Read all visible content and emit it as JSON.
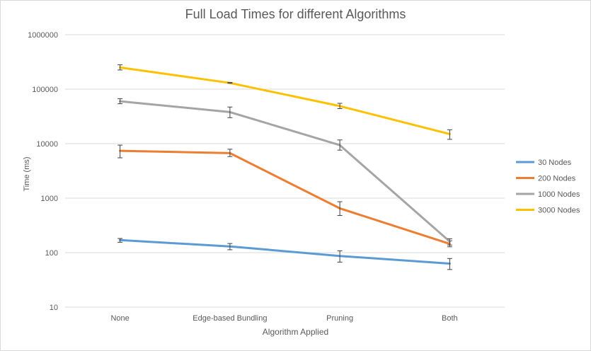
{
  "chart_data": {
    "type": "line",
    "title": "Full Load Times for different Algorithms",
    "xlabel": "Algorithm Applied",
    "ylabel": "Time (ms)",
    "yscale": "log",
    "ylim": [
      10,
      1000000
    ],
    "yticks": [
      "10",
      "100",
      "1000",
      "10000",
      "100000",
      "1000000"
    ],
    "categories": [
      "None",
      "Edge-based Bundling",
      "Pruning",
      "Both"
    ],
    "grid": "horizontal",
    "legend": "right",
    "series": [
      {
        "name": "30 Nodes",
        "color": "#5b9bd5",
        "values": [
          170,
          130,
          87,
          63
        ],
        "err_low": [
          155,
          113,
          67,
          49
        ],
        "err_high": [
          182,
          147,
          108,
          78
        ]
      },
      {
        "name": "200 Nodes",
        "color": "#ed7d31",
        "values": [
          7400,
          6700,
          650,
          145
        ],
        "err_low": [
          5500,
          5800,
          480,
          128
        ],
        "err_high": [
          9400,
          7900,
          860,
          165
        ]
      },
      {
        "name": "1000 Nodes",
        "color": "#a5a5a5",
        "values": [
          60000,
          38000,
          9400,
          160
        ],
        "err_low": [
          54000,
          30000,
          7600,
          138
        ],
        "err_high": [
          67000,
          47000,
          11700,
          180
        ]
      },
      {
        "name": "3000 Nodes",
        "color": "#ffc000",
        "values": [
          250000,
          130000,
          49000,
          15000
        ],
        "err_low": [
          225000,
          128000,
          44000,
          12000
        ],
        "err_high": [
          280000,
          133000,
          55000,
          18000
        ]
      }
    ]
  }
}
